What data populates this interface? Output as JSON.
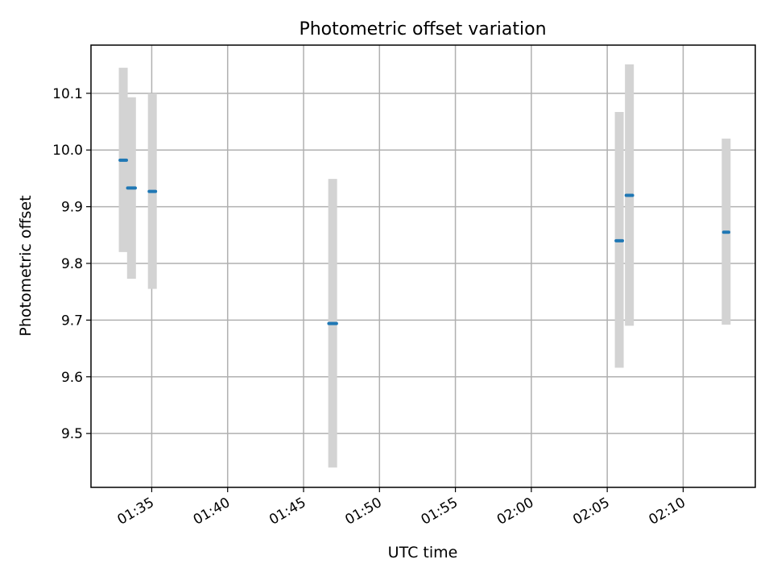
{
  "chart_data": {
    "type": "scatter",
    "title": "Photometric offset variation",
    "xlabel": "UTC time",
    "ylabel": "Photometric offset",
    "x_ticks": [
      "01:35",
      "01:40",
      "01:45",
      "01:50",
      "01:55",
      "02:00",
      "02:05",
      "02:10"
    ],
    "y_ticks": [
      "9.5",
      "9.6",
      "9.7",
      "9.8",
      "9.9",
      "10.0",
      "10.1"
    ],
    "xlim": [
      "01:31:00",
      "02:14:45"
    ],
    "ylim": [
      9.405,
      10.185
    ],
    "grid": true,
    "colors": {
      "point": "#1f77b4",
      "errorbar": "#d3d3d3"
    },
    "series": [
      {
        "x_start": [
          "01:32:55",
          "01:33:25",
          "01:34:50",
          "01:46:40",
          "02:05:35",
          "02:06:15",
          "02:12:40"
        ],
        "x_end": [
          "01:33:20",
          "01:33:55",
          "01:35:15",
          "01:47:10",
          "02:06:00",
          "02:06:40",
          "02:13:00"
        ],
        "y": [
          9.982,
          9.933,
          9.927,
          9.694,
          9.84,
          9.92,
          9.855
        ],
        "y_low": [
          9.82,
          9.773,
          9.755,
          9.44,
          9.616,
          9.69,
          9.692
        ],
        "y_high": [
          10.145,
          10.093,
          10.1,
          9.949,
          10.067,
          10.151,
          10.02
        ]
      }
    ]
  }
}
